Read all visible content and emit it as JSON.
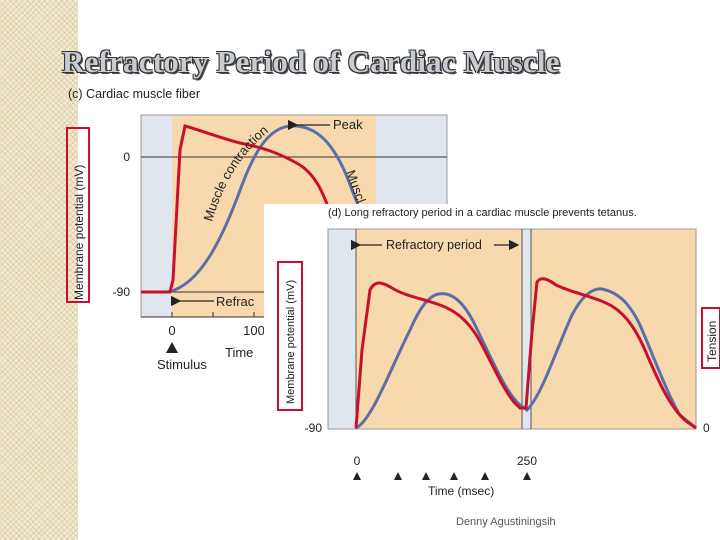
{
  "slide": {
    "title": "Refractory Period of Cardiac Muscle",
    "footer": "Denny Agustiningsih"
  },
  "panel_c": {
    "caption": "(c) Cardiac muscle fiber",
    "ylabel": "Membrane potential (mV)",
    "ytick_top": "0",
    "ytick_bottom": "-90",
    "xtick_0": "0",
    "xtick_100": "100",
    "xlabel": "Time",
    "stimulus_label": "Stimulus",
    "peak_label": "Peak",
    "muscle_contraction_label": "Muscle contraction",
    "muscle_relax_label": "Muscl",
    "refractory_label": "Refrac"
  },
  "panel_d": {
    "caption": "(d) Long refractory period in a cardiac muscle prevents tetanus.",
    "ylabel": "Membrane potential (mV)",
    "ytick_bottom": "-90",
    "right_label": "Tension",
    "right_tick": "0",
    "xtick_0": "0",
    "xtick_250": "250",
    "xlabel": "Time (msec)",
    "refractory_label": "Refractory period"
  },
  "colors": {
    "action_potential": "#c8102e",
    "tension": "#5a6fa8",
    "plot_bg": "#f8d9ad",
    "refractory_bg": "#dfe6ee",
    "label_box": "#c8102e"
  }
}
